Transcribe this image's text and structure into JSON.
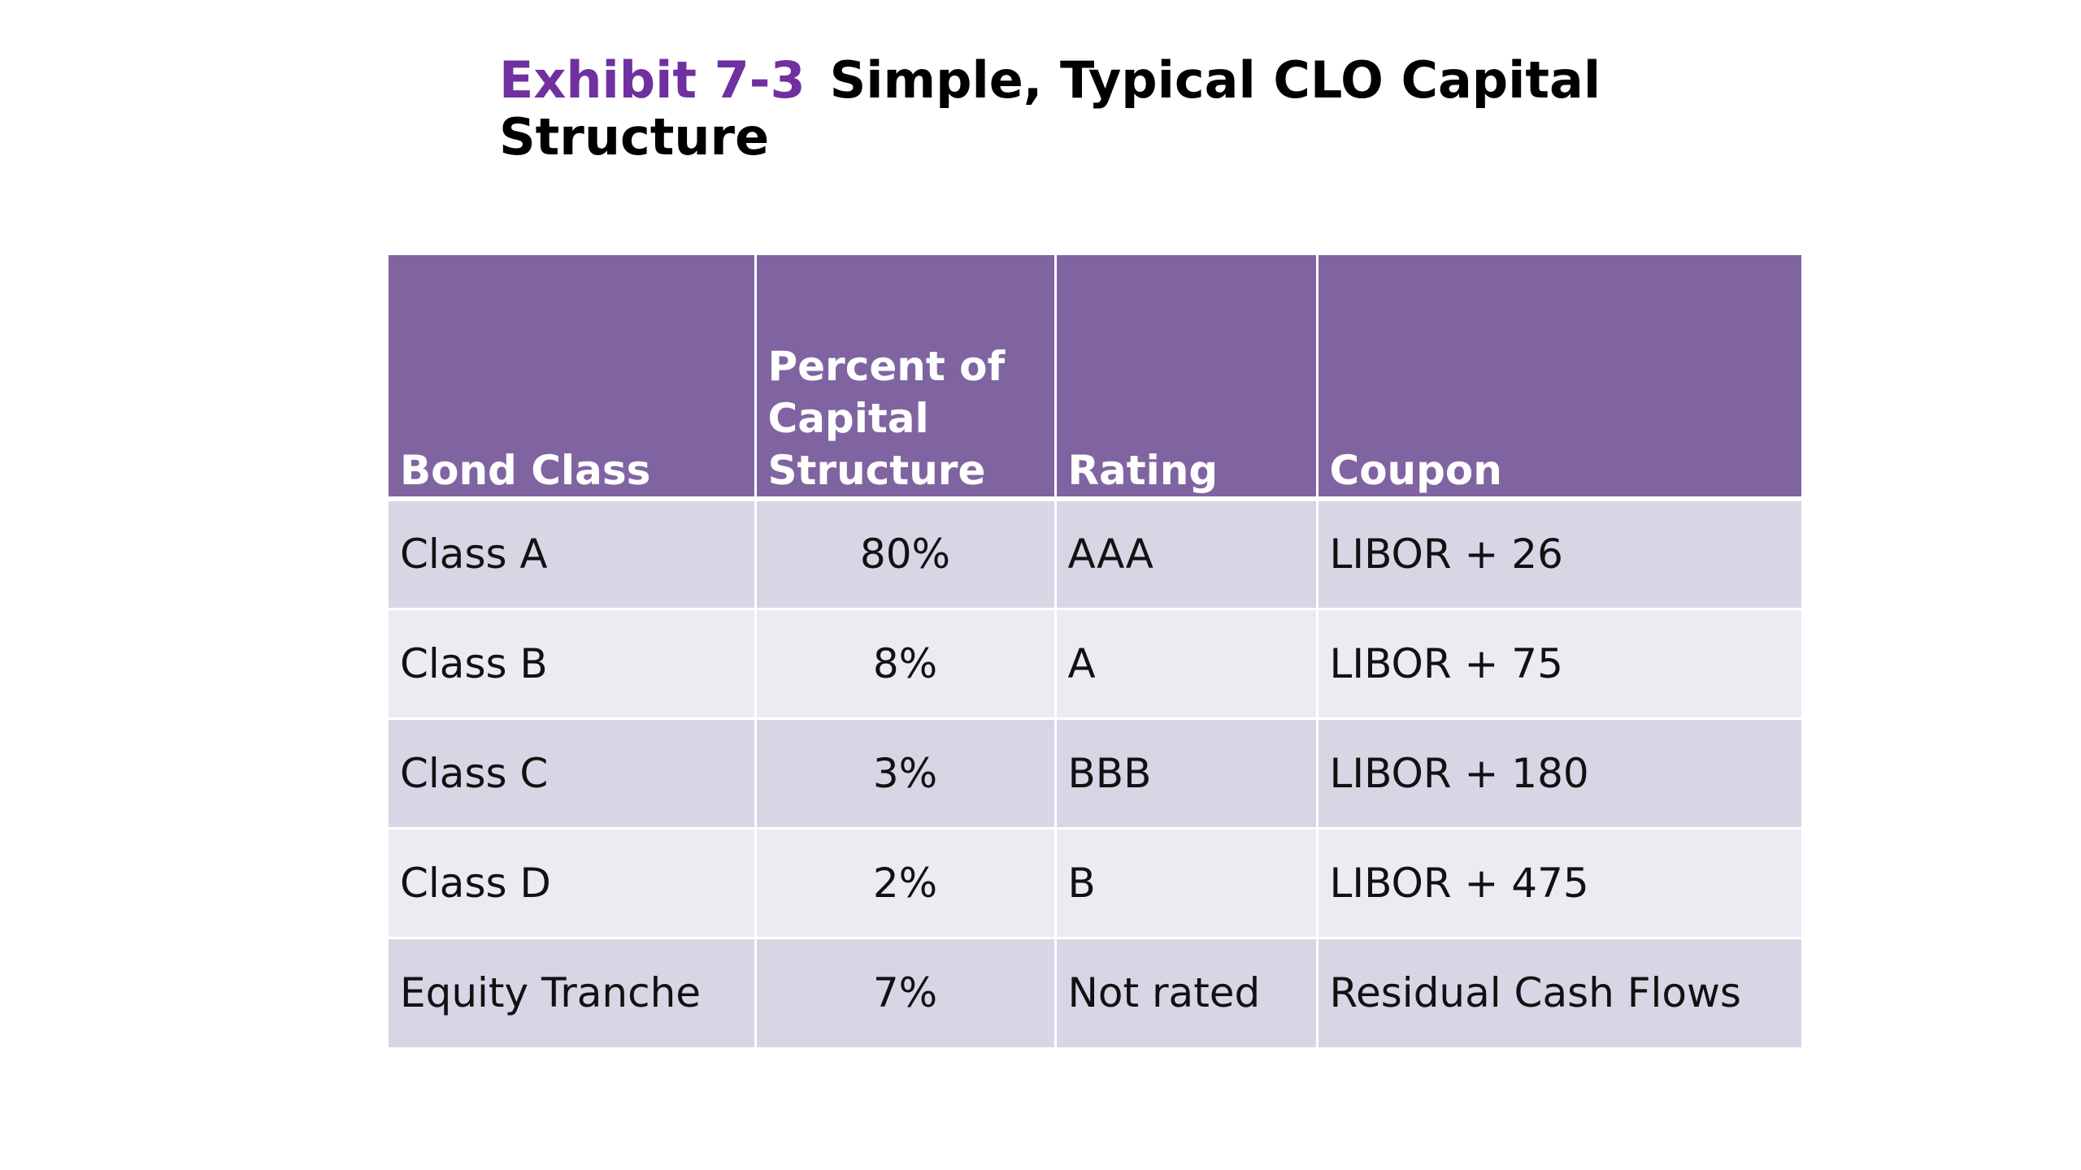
{
  "title": {
    "exhibit": "Exhibit 7-3",
    "text": "Simple, Typical CLO Capital Structure"
  },
  "table": {
    "headers": [
      "Bond Class",
      "Percent of Capital Structure",
      "Rating",
      "Coupon"
    ],
    "rows": [
      {
        "bond_class": "Class A",
        "percent": "80%",
        "rating": "AAA",
        "coupon": "LIBOR + 26"
      },
      {
        "bond_class": "Class B",
        "percent": "8%",
        "rating": "A",
        "coupon": "LIBOR + 75"
      },
      {
        "bond_class": "Class C",
        "percent": "3%",
        "rating": "BBB",
        "coupon": "LIBOR + 180"
      },
      {
        "bond_class": "Class D",
        "percent": "2%",
        "rating": "B",
        "coupon": "LIBOR + 475"
      },
      {
        "bond_class": "Equity Tranche",
        "percent": "7%",
        "rating": "Not rated",
        "coupon": "Residual Cash Flows"
      }
    ]
  },
  "colors": {
    "exhibit_label": "#7030a0",
    "header_bg": "#8064a2",
    "row_odd": "#d9d5e5",
    "row_even": "#edebf1"
  }
}
